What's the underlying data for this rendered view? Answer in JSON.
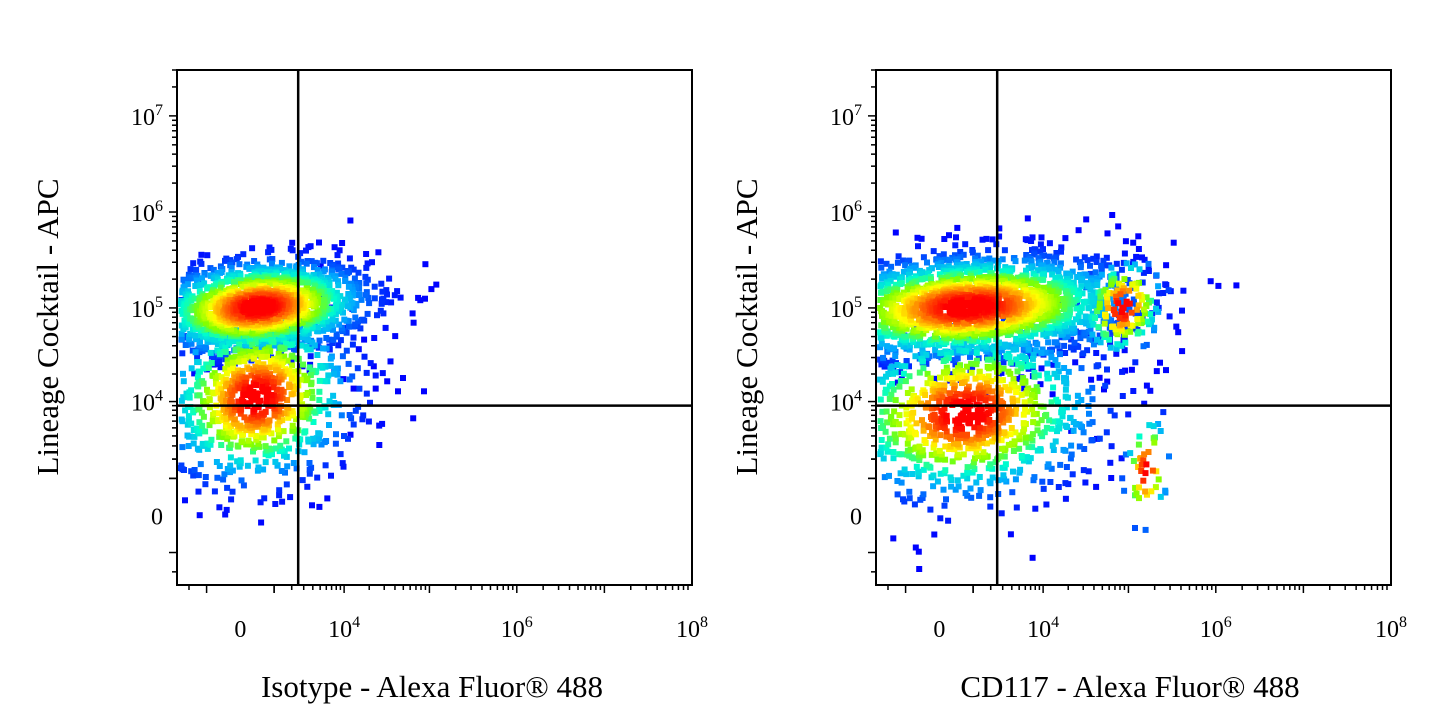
{
  "chart_data": [
    {
      "type": "scatter",
      "subtype": "flow-cytometry-density-dot-plot",
      "xlabel": "Isotype - Alexa Fluor® 488",
      "ylabel": "Lineage Cocktail - APC",
      "xscale": "biexponential",
      "yscale": "biexponential",
      "xlim": [
        -3000,
        100000000
      ],
      "ylim": [
        -3000,
        30000000
      ],
      "x_ticks": [
        {
          "value": 0,
          "label": "0"
        },
        {
          "value": 10000,
          "base": "10",
          "exp": "4"
        },
        {
          "value": 1000000,
          "base": "10",
          "exp": "6"
        },
        {
          "value": 100000000,
          "base": "10",
          "exp": "8"
        }
      ],
      "y_ticks": [
        {
          "value": 0,
          "label": "0"
        },
        {
          "value": 10000,
          "base": "10",
          "exp": "4"
        },
        {
          "value": 100000,
          "base": "10",
          "exp": "5"
        },
        {
          "value": 1000000,
          "base": "10",
          "exp": "6"
        },
        {
          "value": 10000000,
          "base": "10",
          "exp": "7"
        }
      ],
      "gate_x": 2500,
      "gate_y": 9000,
      "grid": false,
      "legend": "none",
      "color_scale": [
        "#0000ff",
        "#00a8ff",
        "#00ffcc",
        "#7fff00",
        "#ffff00",
        "#ff8000",
        "#ff0000"
      ],
      "populations": [
        {
          "center": [
            350,
            110000
          ],
          "spread": [
            1.15,
            0.27
          ],
          "count": 1700
        },
        {
          "center": [
            300,
            12000
          ],
          "spread": [
            1.0,
            0.5
          ],
          "count": 900
        }
      ],
      "outliers": [
        [
          16000,
          50000
        ],
        [
          9000,
          19000
        ],
        [
          22000,
          15000
        ],
        [
          30000,
          18000
        ],
        [
          40000,
          14000
        ],
        [
          80000,
          14000
        ],
        [
          60000,
          7000
        ],
        [
          12000,
          15000
        ],
        [
          11000,
          4500
        ]
      ]
    },
    {
      "type": "scatter",
      "subtype": "flow-cytometry-density-dot-plot",
      "xlabel": "CD117 - Alexa Fluor® 488",
      "ylabel": "Lineage Cocktail - APC",
      "xscale": "biexponential",
      "yscale": "biexponential",
      "xlim": [
        -3000,
        100000000
      ],
      "ylim": [
        -3000,
        30000000
      ],
      "x_ticks": [
        {
          "value": 0,
          "label": "0"
        },
        {
          "value": 10000,
          "base": "10",
          "exp": "4"
        },
        {
          "value": 1000000,
          "base": "10",
          "exp": "6"
        },
        {
          "value": 100000000,
          "base": "10",
          "exp": "8"
        }
      ],
      "y_ticks": [
        {
          "value": 0,
          "label": "0"
        },
        {
          "value": 10000,
          "base": "10",
          "exp": "4"
        },
        {
          "value": 100000,
          "base": "10",
          "exp": "5"
        },
        {
          "value": 1000000,
          "base": "10",
          "exp": "6"
        },
        {
          "value": 10000000,
          "base": "10",
          "exp": "7"
        }
      ],
      "gate_x": 2500,
      "gate_y": 9000,
      "grid": false,
      "legend": "none",
      "color_scale": [
        "#0000ff",
        "#00a8ff",
        "#00ffcc",
        "#7fff00",
        "#ffff00",
        "#ff8000",
        "#ff0000"
      ],
      "populations": [
        {
          "center": [
            700,
            110000
          ],
          "spread": [
            1.7,
            0.3
          ],
          "count": 2300
        },
        {
          "center": [
            600,
            8000
          ],
          "spread": [
            1.4,
            0.5
          ],
          "count": 1000
        },
        {
          "center": [
            80000,
            110000
          ],
          "spread": [
            0.45,
            0.3
          ],
          "count": 160
        },
        {
          "center": [
            150000,
            1500
          ],
          "spread": [
            0.25,
            0.35
          ],
          "count": 45
        }
      ],
      "outliers": [
        [
          60000,
          1000000
        ],
        [
          30000,
          900000
        ],
        [
          120000,
          600000
        ],
        [
          250000,
          300000
        ],
        [
          20000,
          5000
        ],
        [
          40000,
          4000
        ]
      ]
    }
  ]
}
